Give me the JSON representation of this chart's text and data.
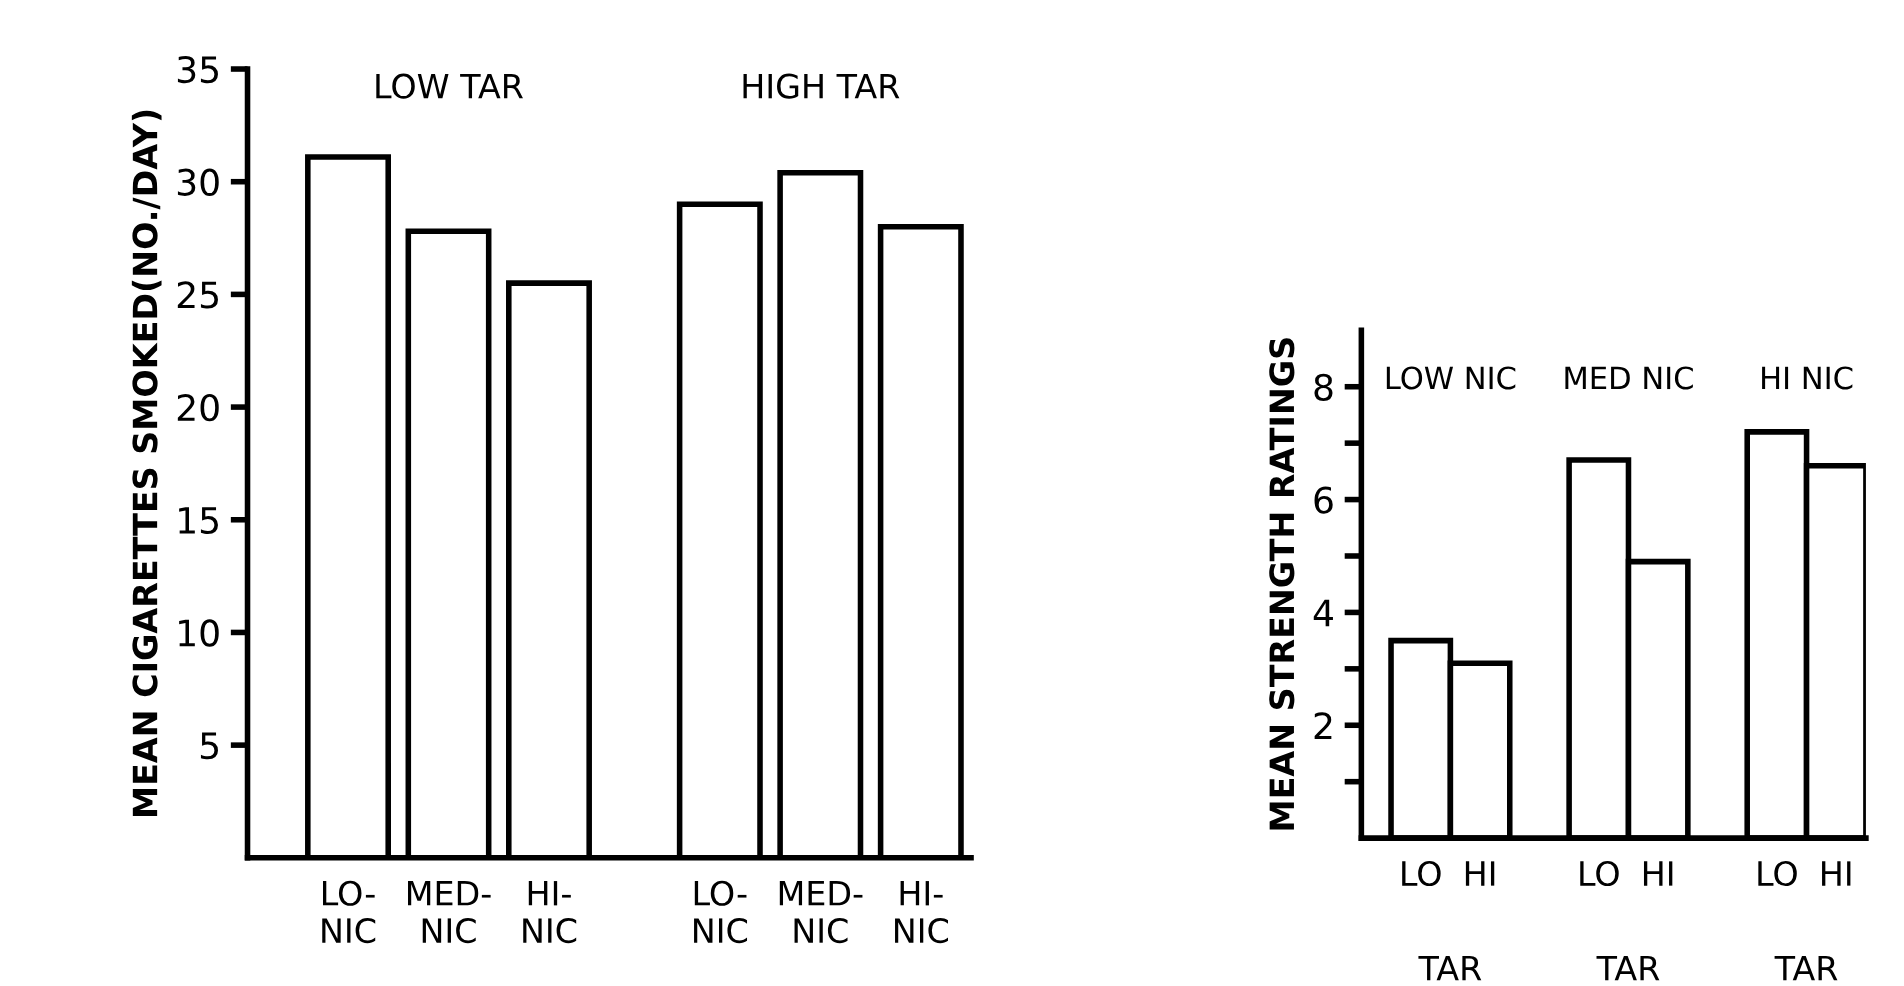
{
  "chart_data": [
    {
      "type": "bar",
      "ylabel": "MEAN CIGARETTES SMOKED(NO./DAY)",
      "categories": [
        "LO-\nNIC",
        "MED-\nNIC",
        "HI-\nNIC",
        "LO-\nNIC",
        "MED-\nNIC",
        "HI-\nNIC"
      ],
      "values": [
        31.1,
        27.8,
        25.5,
        29.0,
        30.4,
        28.0
      ],
      "color": "#ffffff",
      "ylim": [
        0,
        35
      ],
      "yticks": [
        5,
        10,
        15,
        20,
        25,
        30,
        35
      ],
      "grid": false,
      "legend": false,
      "annotations": [
        "LOW TAR",
        "HIGH TAR"
      ]
    },
    {
      "type": "bar",
      "ylabel": "MEAN STRENGTH RATINGS",
      "categories": [
        "LO",
        "HI",
        "LO",
        "HI",
        "LO",
        "HI"
      ],
      "values": [
        3.5,
        3.1,
        6.7,
        4.9,
        7.2,
        6.6
      ],
      "color": "#ffffff",
      "ylim": [
        0,
        9
      ],
      "yticks": [
        {
          "value": 1,
          "label": null
        },
        2,
        {
          "value": 3,
          "label": null
        },
        4,
        {
          "value": 5,
          "label": null
        },
        6,
        {
          "value": 7,
          "label": null
        },
        8
      ],
      "grid": false,
      "legend": false,
      "annotations": [
        "LOW NIC",
        "MED NIC",
        "HI NIC",
        "TAR",
        "TAR",
        "TAR"
      ]
    }
  ]
}
